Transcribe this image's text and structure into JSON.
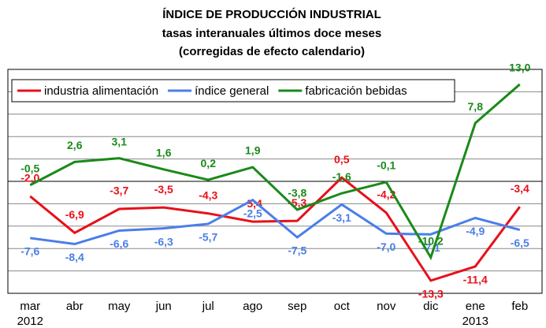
{
  "chart_data": {
    "type": "line",
    "title": "ÍNDICE DE PRODUCCIÓN INDUSTRIAL",
    "subtitle": "tasas interanuales últimos doce meses",
    "subtitle2": "(corregidas de efecto calendario)",
    "categories": [
      "mar",
      "abr",
      "may",
      "jun",
      "jul",
      "ago",
      "sep",
      "oct",
      "nov",
      "dic",
      "ene",
      "feb"
    ],
    "year_labels": [
      "2012",
      null,
      null,
      null,
      null,
      null,
      null,
      null,
      null,
      null,
      "2013",
      null
    ],
    "series": [
      {
        "name": "industria alimentación",
        "color": "#e8101a",
        "values": [
          -2.0,
          -6.9,
          -3.7,
          -3.5,
          -4.3,
          -5.4,
          -5.3,
          0.5,
          -4.2,
          -13.3,
          -11.4,
          -3.4
        ],
        "value_labels": [
          "-2,0",
          "-6,9",
          "-3,7",
          "-3,5",
          "-4,3",
          "-5,4",
          "-5,3",
          "0,5",
          "-4,2",
          "-13,3",
          "-11,4",
          "-3,4"
        ]
      },
      {
        "name": "índice general",
        "color": "#4a7ee8",
        "values": [
          -7.6,
          -8.4,
          -6.6,
          -6.3,
          -5.7,
          -2.5,
          -7.5,
          -3.1,
          -7.0,
          -7.1,
          -4.9,
          -6.5
        ],
        "value_labels": [
          "-7,6",
          "-8,4",
          "-6,6",
          "-6,3",
          "-5,7",
          "-2,5",
          "-7,5",
          "-3,1",
          "-7,0",
          "-7,1",
          "-4,9",
          "-6,5"
        ]
      },
      {
        "name": "fabricación bebidas",
        "color": "#1a8a1a",
        "values": [
          -0.5,
          2.6,
          3.1,
          1.6,
          0.2,
          1.9,
          -3.8,
          -1.6,
          -0.1,
          -10.2,
          7.8,
          13.0
        ],
        "value_labels": [
          "-0,5",
          "2,6",
          "3,1",
          "1,6",
          "0,2",
          "1,9",
          "-3,8",
          "-1,6",
          "-0,1",
          "-10,2",
          "7,8",
          "13,0"
        ]
      }
    ],
    "ylim": [
      -15,
      15
    ],
    "yticks": [
      -15,
      -12,
      -9,
      -6,
      -3,
      0,
      3,
      6,
      9,
      12,
      15
    ],
    "grid": true,
    "legend": "upper left"
  }
}
